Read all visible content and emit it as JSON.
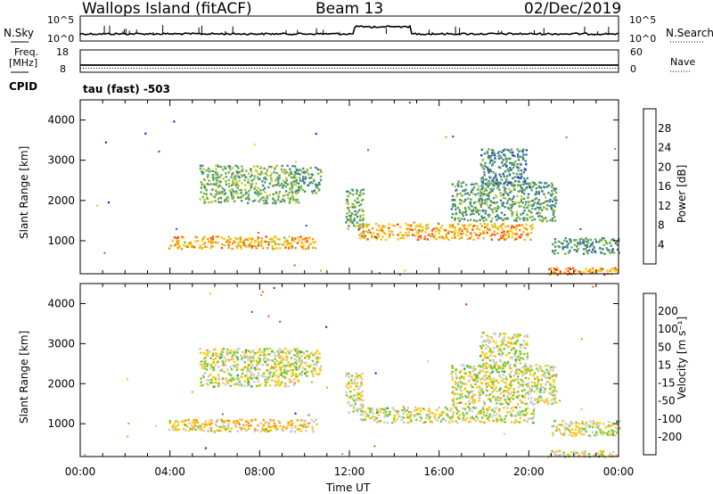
{
  "header": {
    "station": "Wallops Island (fitACF)",
    "beam": "Beam 13",
    "date": "02/Dec/2019"
  },
  "panels": {
    "nsky_label": "N.Sky",
    "nsky_ticks": [
      "10^5",
      "10^0"
    ],
    "nsearch_label": "N.Search",
    "nsearch_ticks": [
      "10^5",
      "10^0"
    ],
    "freq_label": "Freq.",
    "freq_unit": "[MHz]",
    "freq_ticks": [
      "18",
      "8"
    ],
    "nave_label": "Nave",
    "nave_ticks": [
      "60",
      "0"
    ],
    "cpid_label": "CPID",
    "cpid_value": "tau (fast) -503"
  },
  "chart_data": [
    {
      "type": "heatmap",
      "name": "power",
      "xlabel": "",
      "ylabel": "Slant Range [km]",
      "yticks": [
        "4000",
        "3000",
        "2000",
        "1000"
      ],
      "ylim": [
        180,
        4500
      ],
      "xlim": [
        0,
        24
      ],
      "colorbar_label": "Power [dB]",
      "colorbar_ticks": [
        "28",
        "24",
        "20",
        "16",
        "12",
        "8",
        "4"
      ],
      "colorbar_range": [
        0,
        32
      ],
      "colors": [
        "#0000ff",
        "#2b46b8",
        "#3a73a0",
        "#3f8f7a",
        "#5aa05a",
        "#7ab43c",
        "#c8c832",
        "#ffc800",
        "#ff9600",
        "#ff5000",
        "#ff0000"
      ],
      "regions": [
        {
          "t": [
            5.3,
            9.7
          ],
          "r": [
            1950,
            2900
          ],
          "level": 0.45
        },
        {
          "t": [
            9.5,
            10.7
          ],
          "r": [
            2200,
            2850
          ],
          "level": 0.35
        },
        {
          "t": [
            3.9,
            10.5
          ],
          "r": [
            820,
            1130
          ],
          "level": 0.7
        },
        {
          "t": [
            11.8,
            12.6
          ],
          "r": [
            1300,
            2300
          ],
          "level": 0.4
        },
        {
          "t": [
            12.4,
            20.2
          ],
          "r": [
            1050,
            1450
          ],
          "level": 0.72
        },
        {
          "t": [
            16.5,
            21.2
          ],
          "r": [
            1500,
            2500
          ],
          "level": 0.4
        },
        {
          "t": [
            21.0,
            24.0
          ],
          "r": [
            700,
            1100
          ],
          "level": 0.35
        },
        {
          "t": [
            20.8,
            24.0
          ],
          "r": [
            180,
            350
          ],
          "level": 0.75
        },
        {
          "t": [
            17.8,
            19.9
          ],
          "r": [
            2400,
            3300
          ],
          "level": 0.3
        }
      ]
    },
    {
      "type": "heatmap",
      "name": "velocity",
      "xlabel": "Time UT",
      "ylabel": "Slant Range [km]",
      "xticks": [
        "00:00",
        "04:00",
        "08:00",
        "12:00",
        "16:00",
        "20:00",
        "00:00"
      ],
      "yticks": [
        "4000",
        "3000",
        "2000",
        "1000"
      ],
      "ylim": [
        180,
        4500
      ],
      "xlim": [
        0,
        24
      ],
      "colorbar_label": "Velocity [m s⁻¹]",
      "colorbar_ticks": [
        "200",
        "100",
        "50",
        "15",
        "-15",
        "-50",
        "-100",
        "-200"
      ],
      "colors": [
        "#ff0000",
        "#ff5000",
        "#ff9600",
        "#ffc800",
        "#c8c8c8",
        "#78c828",
        "#3c9a50",
        "#2b5aa0",
        "#0000ff"
      ],
      "regions": [
        {
          "t": [
            5.3,
            9.7
          ],
          "r": [
            1950,
            2900
          ],
          "level": 0.5
        },
        {
          "t": [
            9.5,
            10.7
          ],
          "r": [
            2200,
            2850
          ],
          "level": 0.5
        },
        {
          "t": [
            3.9,
            10.5
          ],
          "r": [
            820,
            1130
          ],
          "level": 0.42
        },
        {
          "t": [
            11.8,
            12.6
          ],
          "r": [
            1300,
            2300
          ],
          "level": 0.5
        },
        {
          "t": [
            12.4,
            20.2
          ],
          "r": [
            1050,
            1450
          ],
          "level": 0.5
        },
        {
          "t": [
            16.5,
            21.2
          ],
          "r": [
            1500,
            2500
          ],
          "level": 0.5
        },
        {
          "t": [
            21.0,
            24.0
          ],
          "r": [
            700,
            1100
          ],
          "level": 0.5
        },
        {
          "t": [
            20.8,
            24.0
          ],
          "r": [
            180,
            350
          ],
          "level": 0.5
        },
        {
          "t": [
            17.8,
            19.9
          ],
          "r": [
            2400,
            3300
          ],
          "level": 0.5
        }
      ]
    }
  ]
}
